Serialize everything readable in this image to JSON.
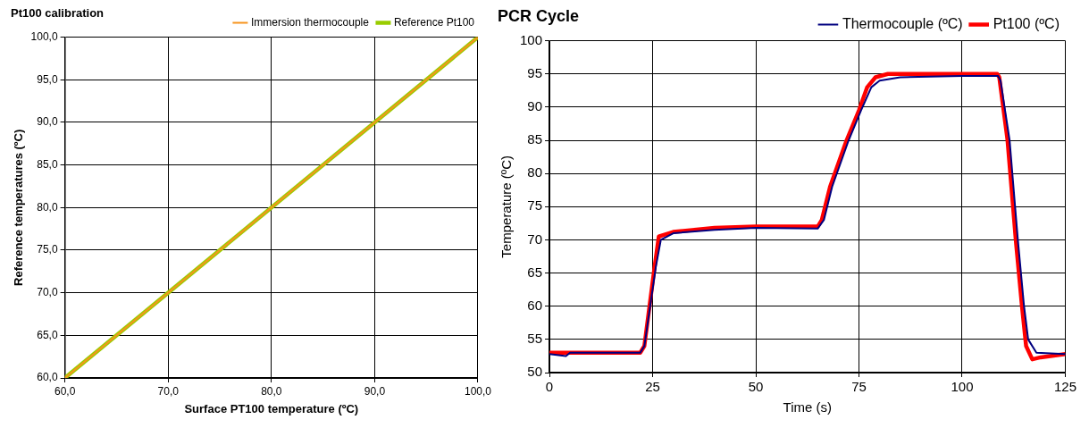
{
  "chart_data": [
    {
      "type": "line",
      "title": "Pt100 calibration",
      "xlabel": "Surface PT100 temperature (ºC)",
      "ylabel": "Reference temperatures (ºC)",
      "legend": "top right",
      "grid": true,
      "marker": "none",
      "xlim": [
        60,
        100
      ],
      "ylim": [
        60,
        100
      ],
      "xticks": [
        {
          "value": 60,
          "label": "60,0"
        },
        {
          "value": 70,
          "label": "70,0"
        },
        {
          "value": 80,
          "label": "80,0"
        },
        {
          "value": 90,
          "label": "90,0"
        },
        {
          "value": 100,
          "label": "100,0"
        }
      ],
      "yticks": [
        {
          "value": 60,
          "label": "60,0"
        },
        {
          "value": 65,
          "label": "65,0"
        },
        {
          "value": 70,
          "label": "70,0"
        },
        {
          "value": 75,
          "label": "75,0"
        },
        {
          "value": 80,
          "label": "80,0"
        },
        {
          "value": 85,
          "label": "85,0"
        },
        {
          "value": 90,
          "label": "90,0"
        },
        {
          "value": 95,
          "label": "95,0"
        },
        {
          "value": 100,
          "label": "100,0"
        }
      ],
      "series": [
        {
          "name": "Immersion thermocouple",
          "color": "#f7941d",
          "x": [
            60,
            100
          ],
          "values": [
            60,
            100
          ]
        },
        {
          "name": "Reference Pt100",
          "color": "#99cc00",
          "x": [
            60,
            100
          ],
          "values": [
            60,
            100
          ]
        }
      ]
    },
    {
      "type": "line",
      "title": "PCR Cycle",
      "xlabel": "Time (s)",
      "ylabel": "Temperature (ºC)",
      "legend": "top right",
      "grid": true,
      "marker": "none",
      "xlim": [
        0,
        125
      ],
      "ylim": [
        50,
        100
      ],
      "xticks": [
        0,
        25,
        50,
        75,
        100,
        125
      ],
      "yticks": [
        50,
        55,
        60,
        65,
        70,
        75,
        80,
        85,
        90,
        95,
        100
      ],
      "series": [
        {
          "name": "Thermocouple (ºC)",
          "color": "#000080",
          "x": [
            0,
            4,
            5,
            22,
            23,
            25.8,
            27,
            30,
            40,
            50,
            65,
            66.5,
            68.5,
            72.5,
            75.5,
            78,
            80,
            85,
            100,
            108.7,
            109.3,
            111.5,
            113.5,
            115,
            116,
            118,
            125
          ],
          "values": [
            52.8,
            52.5,
            53,
            53,
            54,
            66,
            70,
            71,
            71.5,
            71.8,
            71.7,
            73,
            78,
            85,
            89.5,
            93,
            94,
            94.5,
            94.7,
            94.7,
            94,
            85,
            70,
            60,
            55,
            53,
            52.8
          ]
        },
        {
          "name": "Pt100 (ºC)",
          "color": "#ff0000",
          "x": [
            0,
            22,
            23,
            25.5,
            26.5,
            30,
            40,
            50,
            65,
            66,
            68,
            72,
            75,
            77,
            79,
            82,
            100,
            108.5,
            109,
            111,
            113,
            114.5,
            115.5,
            117,
            119,
            125
          ],
          "values": [
            53,
            53,
            54,
            66,
            70.5,
            71.2,
            71.8,
            72,
            72,
            73,
            78,
            85,
            89.5,
            93,
            94.5,
            95,
            95,
            95,
            94.5,
            85,
            70,
            60,
            54,
            52,
            52.3,
            52.8
          ]
        }
      ]
    }
  ]
}
